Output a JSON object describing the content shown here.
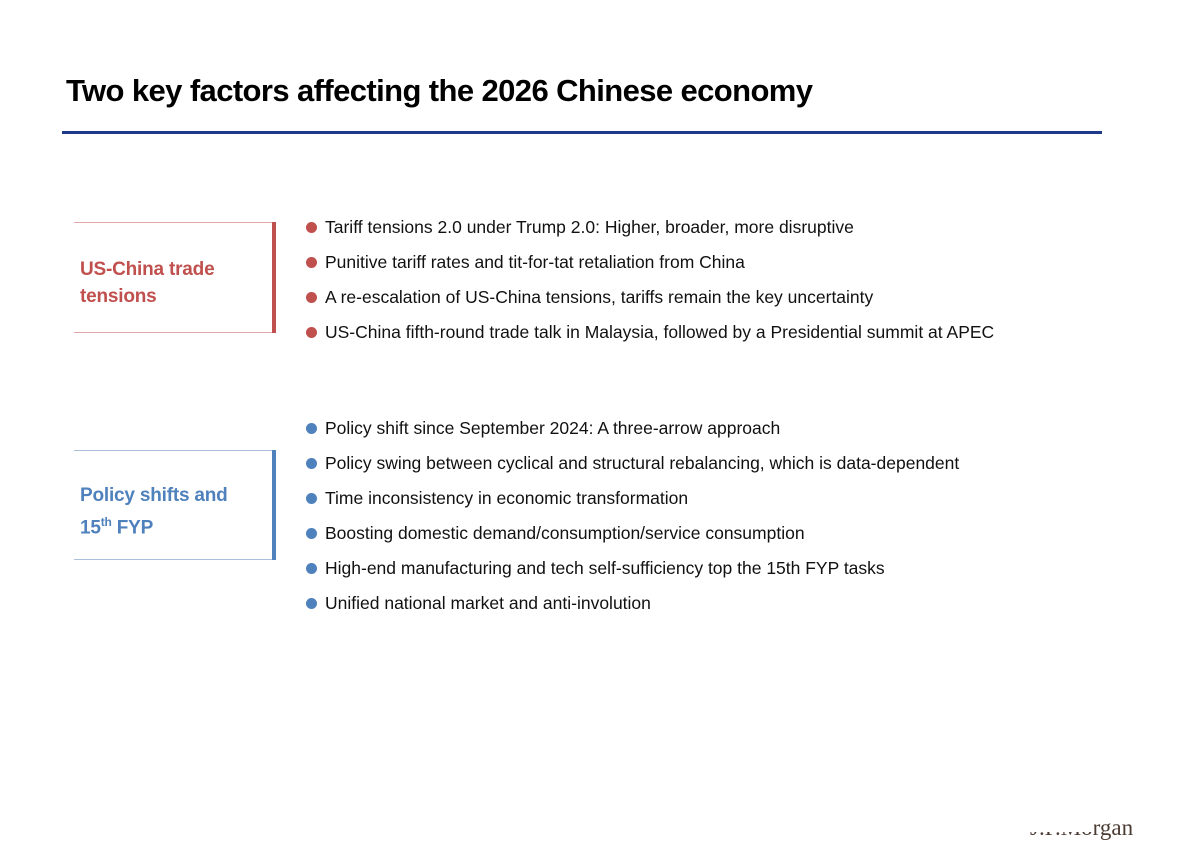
{
  "slide": {
    "title": "Two key factors affecting the 2026 Chinese economy",
    "accent_colors": {
      "title_rule": "#1f3a8a",
      "red": "#c0504d",
      "blue": "#4f81bd"
    }
  },
  "sections": [
    {
      "label_line1": "US-China trade",
      "label_line2": "tensions",
      "bullets": [
        "Tariff tensions 2.0 under Trump 2.0: Higher, broader, more disruptive",
        "Punitive tariff rates and tit-for-tat retaliation from China",
        "A re-escalation of US-China tensions, tariffs remain the key uncertainty",
        "US-China fifth-round trade talk in Malaysia, followed by a Presidential summit at APEC"
      ]
    },
    {
      "label_line1": "Policy shifts and",
      "label_line2_num": "15",
      "label_line2_sup": "th",
      "label_line2_rest": " FYP",
      "bullets": [
        "Policy shift since September 2024: A three-arrow approach",
        "Policy swing between cyclical and structural rebalancing, which is data-dependent",
        "Time inconsistency in economic transformation",
        "Boosting domestic demand/consumption/service consumption",
        "High-end manufacturing and tech self-sufficiency top the 15th FYP tasks",
        "Unified national market and anti-involution"
      ]
    }
  ],
  "footer": {
    "logo_text": "J.P.Morgan"
  }
}
